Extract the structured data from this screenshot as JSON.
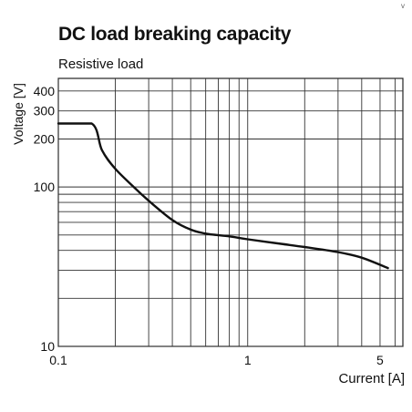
{
  "chart_data": {
    "type": "line",
    "title": "DC load breaking capacity",
    "subtitle": "Resistive load",
    "xlabel": "Current [A]",
    "ylabel": "Voltage [V]",
    "x_scale": "log",
    "y_scale": "log",
    "xlim": [
      0.1,
      6.6
    ],
    "ylim": [
      10,
      480
    ],
    "x_tick_labels": [
      "0.1",
      "1",
      "5"
    ],
    "x_tick_values": [
      0.1,
      1,
      5
    ],
    "y_tick_labels": [
      "10",
      "100",
      "200",
      "300",
      "400"
    ],
    "y_tick_values": [
      10,
      100,
      200,
      300,
      400
    ],
    "x_grid": [
      0.1,
      0.2,
      0.3,
      0.4,
      0.5,
      0.6,
      0.7,
      0.8,
      0.9,
      1,
      2,
      3,
      4,
      5,
      6
    ],
    "y_grid": [
      10,
      20,
      30,
      40,
      50,
      60,
      70,
      80,
      90,
      100,
      200,
      300,
      400
    ],
    "grid": true,
    "series": [
      {
        "name": "",
        "x": [
          0.1,
          0.15,
          0.17,
          0.2,
          0.25,
          0.3,
          0.4,
          0.5,
          0.6,
          0.8,
          1,
          1.5,
          2,
          3,
          4,
          5.5
        ],
        "y": [
          250,
          250,
          170,
          130,
          100,
          82,
          62,
          54,
          51,
          49,
          47,
          44,
          42,
          39,
          36,
          31
        ]
      }
    ]
  },
  "corner_mark": "v"
}
